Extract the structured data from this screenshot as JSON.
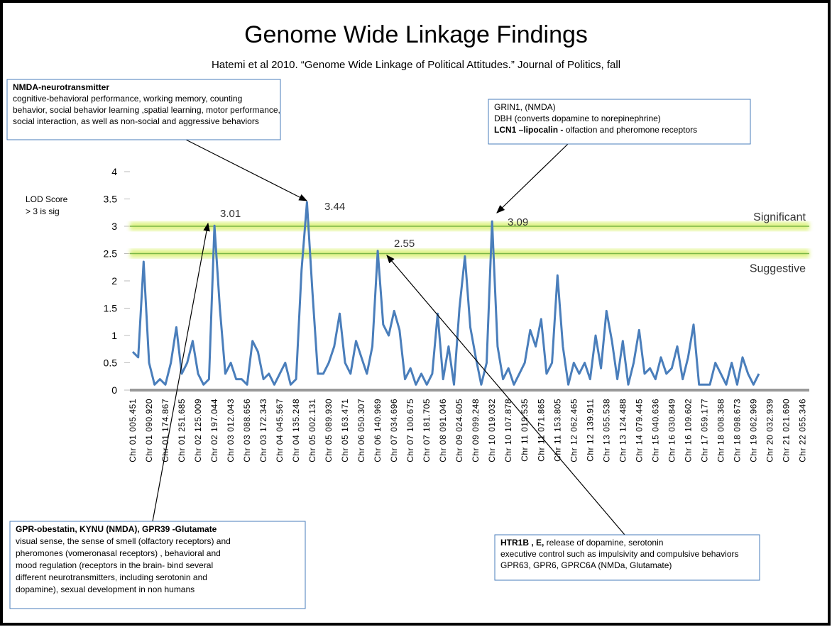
{
  "chart_data": {
    "type": "line",
    "title": "Genome Wide Linkage Findings",
    "subtitle": "Hatemi  et  al 2010. “Genome Wide Linkage of Political Attitudes.” Journal of Politics, fall",
    "ylabel": [
      "LOD Score",
      "> 3 is sig"
    ],
    "categories": [
      "Chr 01 005.451",
      null,
      null,
      "Chr 01 090.920",
      null,
      null,
      "Chr 01 174.867",
      null,
      null,
      "Chr 01 251.685",
      null,
      null,
      "Chr 02 125.009",
      null,
      null,
      "Chr 02 197.044",
      null,
      null,
      "Chr 03 012.043",
      null,
      null,
      "Chr 03 088.656",
      null,
      null,
      "Chr 03 172.343",
      null,
      null,
      "Chr 04 045.567",
      null,
      null,
      "Chr 04 135.248",
      null,
      null,
      "Chr 05 002.131",
      null,
      null,
      "Chr 05 089.930",
      null,
      null,
      "Chr 05 163.471",
      null,
      null,
      "Chr 06 050.307",
      null,
      null,
      "Chr 06 140.969",
      null,
      null,
      "Chr 07 034.696",
      null,
      null,
      "Chr 07 100.675",
      null,
      null,
      "Chr 07 181.705",
      null,
      null,
      "Chr 08 091.046",
      null,
      null,
      "Chr 09 024.605",
      null,
      null,
      "Chr 09 099.248",
      null,
      null,
      "Chr 10 019.032",
      null,
      null,
      "Chr 10 107.878",
      null,
      null,
      "Chr 11 019.535",
      null,
      null,
      "Chr 11 071.865",
      null,
      null,
      "Chr 11 153.805",
      null,
      null,
      "Chr 12 062.465",
      null,
      null,
      "Chr 12 139.911",
      null,
      null,
      "Chr 13 055.538",
      null,
      null,
      "Chr 13 124.488",
      null,
      null,
      "Chr 14 079.445",
      null,
      null,
      "Chr 15 040.636",
      null,
      null,
      "Chr 16 030.849",
      null,
      null,
      "Chr 16 109.602",
      null,
      null,
      "Chr 17 059.177",
      null,
      null,
      "Chr 18 008.368",
      null,
      null,
      "Chr 18 098.673",
      null,
      null,
      "Chr 19 062.969",
      null,
      null,
      "Chr 20 032.939",
      null,
      null,
      "Chr 21 021.690",
      null,
      null,
      "Chr 22 055.346",
      null,
      null
    ],
    "series": [
      {
        "color": "#4a7ebb",
        "values": [
          0.7,
          0.6,
          2.35,
          0.5,
          0.1,
          0.2,
          0.1,
          0.5,
          1.15,
          0.3,
          0.5,
          0.9,
          0.3,
          0.1,
          0.2,
          3.01,
          1.5,
          0.3,
          0.5,
          0.2,
          0.2,
          0.1,
          0.9,
          0.7,
          0.2,
          0.3,
          0.1,
          0.3,
          0.5,
          0.1,
          0.2,
          2.2,
          3.44,
          1.8,
          0.3,
          0.3,
          0.5,
          0.8,
          1.4,
          0.5,
          0.3,
          0.9,
          0.6,
          0.3,
          0.8,
          2.55,
          1.2,
          1.0,
          1.45,
          1.1,
          0.2,
          0.4,
          0.1,
          0.3,
          0.1,
          0.3,
          1.4,
          0.2,
          0.8,
          0.1,
          1.5,
          2.45,
          1.15,
          0.6,
          0.1,
          0.5,
          3.09,
          0.8,
          0.2,
          0.4,
          0.1,
          0.3,
          0.5,
          1.1,
          0.8,
          1.3,
          0.3,
          0.5,
          2.1,
          0.8,
          0.1,
          0.5,
          0.3,
          0.5,
          0.2,
          1.0,
          0.4,
          1.45,
          0.9,
          0.2,
          0.9,
          0.1,
          0.5,
          1.1,
          0.3,
          0.4,
          0.2,
          0.6,
          0.3,
          0.4,
          0.8,
          0.2,
          0.6,
          1.2,
          0.1,
          0.1,
          0.1,
          0.5,
          0.3,
          0.1,
          0.5,
          0.1,
          0.6,
          0.3,
          0.1,
          0.3,
          null,
          null,
          null,
          null,
          null,
          null,
          null,
          null,
          null,
          null
        ]
      }
    ],
    "ylim": [
      0,
      4
    ],
    "yticks": [
      0,
      0.5,
      1,
      1.5,
      2,
      2.5,
      3,
      3.5,
      4
    ],
    "thresholds": [
      {
        "name": "Significant",
        "value": 3
      },
      {
        "name": "Suggestive",
        "value": 2.5
      }
    ],
    "peak_labels": [
      "3.01",
      "3.44",
      "2.55",
      "3.09"
    ],
    "annotations": [
      {
        "lines": [
          {
            "bold": "NMDA-neurotransmitter"
          },
          "cognitive-behavioral performance, working memory, counting",
          "behavior, social behavior learning ,spatial learning, motor performance,",
          "social interaction, as well as non-social and aggressive behaviors"
        ]
      },
      {
        "lines": [
          "GRIN1, (NMDA)",
          "DBH (converts dopamine to norepinephrine)",
          {
            "bold": "LCN1 –lipocalin -",
            "text": " olfaction and pheromone receptors"
          }
        ]
      },
      {
        "lines": [
          {
            "bold": "GPR-obestatin, KYNU (NMDA), GPR39 -Glutamate"
          },
          "visual sense, the sense of smell (olfactory receptors) and",
          "pheromones (vomeronasal receptors) , behavioral and",
          "mood regulation (receptors in the brain- bind several",
          "different neurotransmitters, including serotonin and",
          "dopamine),  sexual development in non humans"
        ]
      },
      {
        "lines": [
          {
            "bold": "HTR1B , E,",
            "text": " release of dopamine, serotonin"
          },
          "executive control such as impulsivity and compulsive behaviors",
          "GPR63, GPR6, GPRC6A (NMDa, Glutamate)"
        ]
      }
    ]
  }
}
